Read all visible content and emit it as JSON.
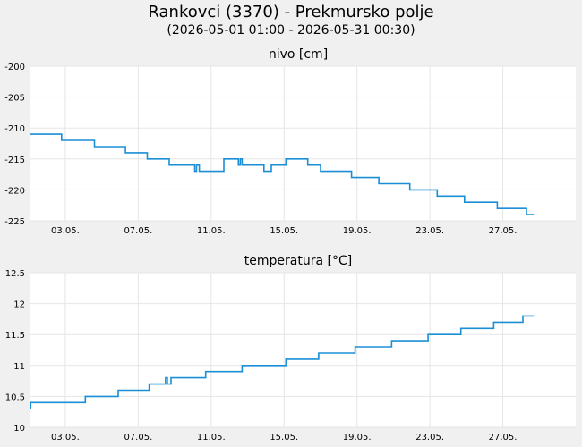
{
  "header": {
    "title": "Rankovci (3370) - Prekmursko polje",
    "subtitle": "(2026-05-01 01:00 - 2026-05-31 00:30)"
  },
  "colors": {
    "background": "#f0f0f0",
    "plot_background": "#ffffff",
    "grid": "#e6e6e6",
    "series": "#1a8fd6"
  },
  "chart_data": [
    {
      "type": "line",
      "title": "nivo [cm]",
      "xlabel": "",
      "ylabel": "",
      "x_ticks": [
        "03.05.",
        "07.05.",
        "11.05.",
        "15.05.",
        "19.05.",
        "23.05.",
        "27.05."
      ],
      "x_tick_positions": [
        3,
        7,
        11,
        15,
        19,
        23,
        27
      ],
      "xlim": [
        1.04,
        31.0
      ],
      "ylim": [
        -225,
        -200
      ],
      "y_ticks": [
        -200,
        -205,
        -210,
        -215,
        -220,
        -225
      ],
      "grid": true,
      "legend": "none",
      "series": [
        {
          "x": [
            1.04,
            2.8,
            2.8,
            4.6,
            4.6,
            6.3,
            6.3,
            7.5,
            7.5,
            8.7,
            8.7,
            10.1,
            10.1,
            10.2,
            10.2,
            10.35,
            10.35,
            11.7,
            11.7,
            12.5,
            12.5,
            12.6,
            12.6,
            12.7,
            12.7,
            13.9,
            13.9,
            14.3,
            14.3,
            15.1,
            15.1,
            16.3,
            16.3,
            17.0,
            17.0,
            18.7,
            18.7,
            20.2,
            20.2,
            21.9,
            21.9,
            23.4,
            23.4,
            24.9,
            24.9,
            26.7,
            26.7,
            28.3,
            28.3,
            28.7
          ],
          "y": [
            -211,
            -211,
            -212,
            -212,
            -213,
            -213,
            -214,
            -214,
            -215,
            -215,
            -216,
            -216,
            -217,
            -217,
            -216,
            -216,
            -217,
            -217,
            -215,
            -215,
            -216,
            -216,
            -215,
            -215,
            -216,
            -216,
            -217,
            -217,
            -216,
            -216,
            -215,
            -215,
            -216,
            -216,
            -217,
            -217,
            -218,
            -218,
            -219,
            -219,
            -220,
            -220,
            -221,
            -221,
            -222,
            -222,
            -223,
            -223,
            -224,
            -224
          ]
        }
      ]
    },
    {
      "type": "line",
      "title": "temperatura [°C]",
      "xlabel": "",
      "ylabel": "",
      "x_ticks": [
        "03.05.",
        "07.05.",
        "11.05.",
        "15.05.",
        "19.05.",
        "23.05.",
        "27.05."
      ],
      "x_tick_positions": [
        3,
        7,
        11,
        15,
        19,
        23,
        27
      ],
      "xlim": [
        1.04,
        31.0
      ],
      "ylim": [
        10,
        12.5
      ],
      "y_ticks": [
        12.5,
        12,
        11.5,
        11,
        10.5,
        10
      ],
      "grid": true,
      "legend": "none",
      "series": [
        {
          "x": [
            1.04,
            1.1,
            1.1,
            4.1,
            4.1,
            5.9,
            5.9,
            7.6,
            7.6,
            8.5,
            8.5,
            8.6,
            8.6,
            8.8,
            8.8,
            10.7,
            10.7,
            12.7,
            12.7,
            15.1,
            15.1,
            16.9,
            16.9,
            18.9,
            18.9,
            20.9,
            20.9,
            22.9,
            22.9,
            24.7,
            24.7,
            26.5,
            26.5,
            28.1,
            28.1,
            28.7
          ],
          "y": [
            10.3,
            10.3,
            10.4,
            10.4,
            10.5,
            10.5,
            10.6,
            10.6,
            10.7,
            10.7,
            10.8,
            10.8,
            10.7,
            10.7,
            10.8,
            10.8,
            10.9,
            10.9,
            11.0,
            11.0,
            11.1,
            11.1,
            11.2,
            11.2,
            11.3,
            11.3,
            11.4,
            11.4,
            11.5,
            11.5,
            11.6,
            11.6,
            11.7,
            11.7,
            11.8,
            11.8
          ]
        }
      ]
    }
  ]
}
